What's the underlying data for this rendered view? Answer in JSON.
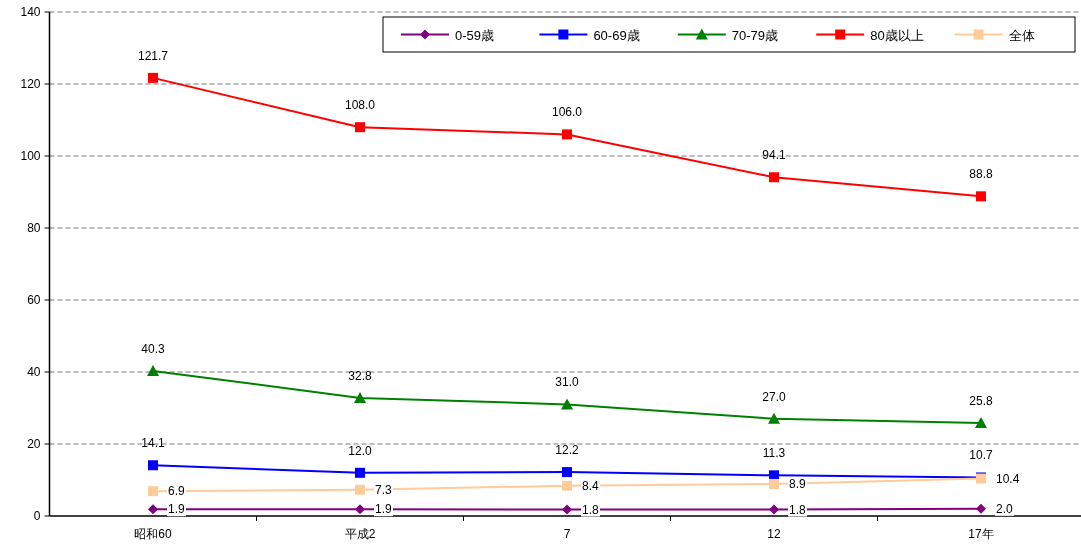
{
  "chart_data": {
    "type": "line",
    "categories": [
      "昭和60",
      "平成2",
      "7",
      "12",
      "17年"
    ],
    "series": [
      {
        "name": "0-59歳",
        "color": "#800080",
        "marker": "diamond",
        "values": [
          1.9,
          1.9,
          1.8,
          1.8,
          2.0
        ],
        "value_labels": [
          "1.9",
          "1.9",
          "1.8",
          "1.8",
          "2.0"
        ]
      },
      {
        "name": "60-69歳",
        "color": "#0000ff",
        "marker": "square",
        "values": [
          14.1,
          12.0,
          12.2,
          11.3,
          10.7
        ],
        "value_labels": [
          "14.1",
          "12.0",
          "12.2",
          "11.3",
          "10.7"
        ]
      },
      {
        "name": "70-79歳",
        "color": "#008000",
        "marker": "triangle",
        "values": [
          40.3,
          32.8,
          31.0,
          27.0,
          25.8
        ],
        "value_labels": [
          "40.3",
          "32.8",
          "31.0",
          "27.0",
          "25.8"
        ]
      },
      {
        "name": "80歳以上",
        "color": "#ff0000",
        "marker": "square",
        "values": [
          121.7,
          108.0,
          106.0,
          94.1,
          88.8
        ],
        "value_labels": [
          "121.7",
          "108.0",
          "106.0",
          "94.1",
          "88.8"
        ]
      },
      {
        "name": "全体",
        "color": "#ffcc99",
        "marker": "square",
        "values": [
          6.9,
          7.3,
          8.4,
          8.9,
          10.4
        ],
        "value_labels": [
          "6.9",
          "7.3",
          "8.4",
          "8.9",
          "10.4"
        ]
      }
    ],
    "ylim": [
      0,
      140
    ],
    "yticks": [
      0,
      20,
      40,
      60,
      80,
      100,
      120,
      140
    ],
    "grid": "y",
    "legend": "top right",
    "line_style": "solid"
  }
}
